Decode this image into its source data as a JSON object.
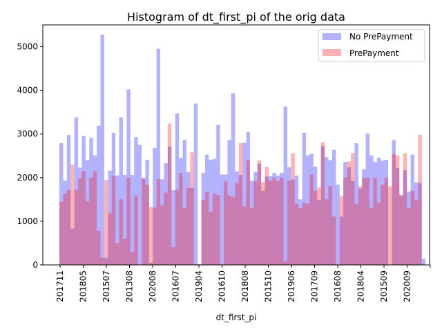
{
  "chart_data": {
    "type": "bar",
    "title": "Histogram of dt_first_pi of the orig data",
    "xlabel": "dt_first_pi",
    "ylabel": "",
    "ylim": [
      0,
      5500
    ],
    "yticks": [
      0,
      1000,
      2000,
      3000,
      4000,
      5000
    ],
    "x_tick_labels": [
      "201711",
      "201805",
      "201507",
      "201308",
      "202008",
      "201607",
      "201904",
      "201610",
      "201808",
      "201510",
      "201906",
      "201709",
      "201608",
      "201804",
      "201509",
      "202009",
      ""
    ],
    "grid": false,
    "legend": "top-right",
    "series": [
      {
        "name": "No PrePayment",
        "color": "#0000ff",
        "opacity": 0.3,
        "values": [
          2790,
          1930,
          2980,
          830,
          3380,
          2230,
          2950,
          2400,
          2910,
          2510,
          3190,
          5280,
          160,
          2160,
          3030,
          2050,
          3380,
          2060,
          4020,
          2060,
          2930,
          2750,
          1990,
          2410,
          50,
          2680,
          4950,
          1960,
          2330,
          2710,
          1710,
          3470,
          2450,
          2870,
          2130,
          1770,
          3700,
          20,
          2110,
          2530,
          2410,
          2430,
          3210,
          2070,
          2070,
          2860,
          3930,
          2140,
          2060,
          2800,
          3050,
          1930,
          2130,
          2320,
          1700,
          2020,
          2040,
          2110,
          2050,
          2110,
          3630,
          2240,
          1960,
          2050,
          1500,
          3030,
          2510,
          2550,
          2250,
          1490,
          2720,
          2470,
          2400,
          2640,
          1840,
          1110,
          2360,
          2240,
          1920,
          2790,
          1750,
          2190,
          3010,
          2510,
          2360,
          2460,
          2390,
          2410,
          0,
          2860,
          2220,
          1590,
          2170,
          1680,
          2530,
          1890,
          1870,
          140
        ]
      },
      {
        "name": "PrePayment",
        "color": "#ff0000",
        "opacity": 0.3,
        "values": [
          1450,
          1630,
          1720,
          2300,
          1720,
          1980,
          2150,
          1460,
          2000,
          2150,
          780,
          160,
          1950,
          1180,
          2040,
          500,
          1510,
          600,
          2000,
          300,
          1590,
          0,
          1970,
          1830,
          1330,
          1310,
          1970,
          1360,
          1660,
          3240,
          410,
          1720,
          2110,
          1300,
          1760,
          2580,
          20,
          0,
          1490,
          1670,
          1220,
          1640,
          1600,
          0,
          1920,
          1590,
          1560,
          1880,
          2790,
          1340,
          2400,
          1300,
          1920,
          2400,
          1900,
          2250,
          1930,
          2000,
          1920,
          2000,
          80,
          1930,
          2560,
          1400,
          1300,
          1420,
          1400,
          2070,
          1700,
          1770,
          2810,
          1500,
          1810,
          1110,
          0,
          1580,
          2000,
          2370,
          2560,
          1400,
          1800,
          2000,
          2000,
          1300,
          2000,
          1430,
          1840,
          2000,
          1800,
          2540,
          2510,
          1600,
          2560,
          1300,
          1700,
          1480,
          2980,
          0
        ]
      }
    ]
  }
}
